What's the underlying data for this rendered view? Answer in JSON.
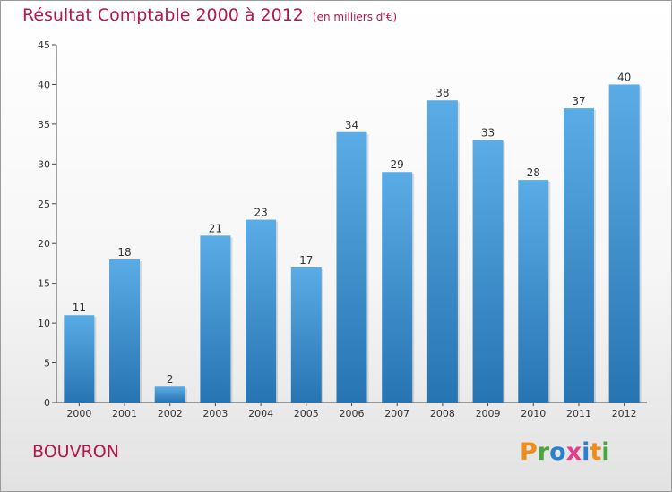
{
  "title": "Résultat Comptable 2000 à 2012",
  "unit": "(en milliers d'€)",
  "city": "BOUVRON",
  "logo": "Proxiti",
  "colors": {
    "title": "#b5174a",
    "bar_top": "#5aace6",
    "bar_bottom": "#2774b2",
    "logo_P": "#f08c1c",
    "logo_r": "#4aa53c",
    "logo_o": "#2a7fd0",
    "logo_x": "#e63c8c",
    "logo_i1": "#2a7fd0",
    "logo_t": "#f08c1c",
    "logo_i2": "#4aa53c"
  },
  "chart_data": {
    "type": "bar",
    "title": "Résultat Comptable 2000 à 2012",
    "subtitle": "(en milliers d'€)",
    "categories": [
      "2000",
      "2001",
      "2002",
      "2003",
      "2004",
      "2005",
      "2006",
      "2007",
      "2008",
      "2009",
      "2010",
      "2011",
      "2012"
    ],
    "values": [
      11,
      18,
      2,
      21,
      23,
      17,
      34,
      29,
      38,
      33,
      28,
      37,
      40
    ],
    "ylim": [
      0,
      45
    ],
    "yticks": [
      0,
      5,
      10,
      15,
      20,
      25,
      30,
      35,
      40,
      45
    ],
    "xlabel": "",
    "ylabel": "",
    "grid": false
  }
}
